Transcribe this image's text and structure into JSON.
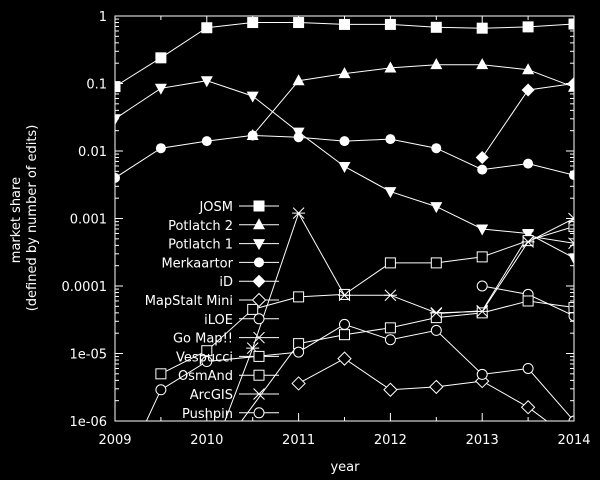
{
  "chart_data": {
    "type": "line",
    "xlabel": "year",
    "ylabel_lines": [
      "market share",
      "(defined by number of edits)"
    ],
    "xlim": [
      2009,
      2014
    ],
    "ylim": [
      1e-06,
      1
    ],
    "log_y": true,
    "grid": false,
    "legend_position": "left",
    "x_ticks": [
      2009,
      2010,
      2011,
      2012,
      2013,
      2014
    ],
    "x_tick_labels": [
      "2009",
      "2010",
      "2011",
      "2012",
      "2013",
      "2014"
    ],
    "y_ticks": [
      1e-06,
      1e-05,
      0.0001,
      0.001,
      0.01,
      0.1,
      1
    ],
    "y_tick_labels": [
      "1e-06",
      "1e-05",
      "0.0001",
      "0.001",
      "0.01",
      "0.1",
      "1"
    ],
    "series": [
      {
        "name": "JOSM",
        "marker": "filled-square",
        "points": [
          [
            2009,
            0.09
          ],
          [
            2009.5,
            0.24
          ],
          [
            2010,
            0.67
          ],
          [
            2010.5,
            0.8
          ],
          [
            2011,
            0.8
          ],
          [
            2011.5,
            0.75
          ],
          [
            2012,
            0.75
          ],
          [
            2012.5,
            0.68
          ],
          [
            2013,
            0.66
          ],
          [
            2013.5,
            0.69
          ],
          [
            2014,
            0.76
          ]
        ]
      },
      {
        "name": "Potlatch 2",
        "marker": "filled-triangle-up",
        "points": [
          [
            2010.5,
            0.017
          ],
          [
            2011,
            0.11
          ],
          [
            2011.5,
            0.14
          ],
          [
            2012,
            0.17
          ],
          [
            2012.5,
            0.19
          ],
          [
            2013,
            0.19
          ],
          [
            2013.5,
            0.16
          ],
          [
            2014,
            0.088
          ]
        ]
      },
      {
        "name": "Potlatch 1",
        "marker": "filled-triangle-down",
        "points": [
          [
            2009,
            0.03
          ],
          [
            2009.5,
            0.085
          ],
          [
            2010,
            0.11
          ],
          [
            2010.5,
            0.065
          ],
          [
            2011,
            0.019
          ],
          [
            2011.5,
            0.0059
          ],
          [
            2012,
            0.0025
          ],
          [
            2012.5,
            0.0015
          ],
          [
            2013,
            0.0007
          ],
          [
            2013.5,
            0.0006
          ],
          [
            2014,
            0.00026
          ]
        ]
      },
      {
        "name": "Merkaartor",
        "marker": "filled-circle",
        "points": [
          [
            2009,
            0.004
          ],
          [
            2009.5,
            0.011
          ],
          [
            2010,
            0.014
          ],
          [
            2010.5,
            0.017
          ],
          [
            2011,
            0.016
          ],
          [
            2011.5,
            0.014
          ],
          [
            2012,
            0.015
          ],
          [
            2012.5,
            0.011
          ],
          [
            2013,
            0.0053
          ],
          [
            2013.5,
            0.0065
          ],
          [
            2014,
            0.0044
          ]
        ]
      },
      {
        "name": "iD",
        "marker": "filled-diamond",
        "points": [
          [
            2013,
            0.008
          ],
          [
            2013.5,
            0.08
          ],
          [
            2014,
            0.1
          ]
        ]
      },
      {
        "name": "MapStalt Mini",
        "marker": "open-diamond",
        "points": [
          [
            2011,
            3.6e-06
          ],
          [
            2011.5,
            8.4e-06
          ],
          [
            2012,
            2.9e-06
          ],
          [
            2012.5,
            3.2e-06
          ],
          [
            2013,
            3.9e-06
          ],
          [
            2013.5,
            1.6e-06
          ],
          [
            2014,
            5e-07
          ]
        ]
      },
      {
        "name": "iLOE",
        "marker": "open-circle",
        "points": [
          [
            2013,
            0.0001
          ],
          [
            2013.5,
            7.5e-05
          ],
          [
            2014,
            3.6e-05
          ]
        ]
      },
      {
        "name": "Go Map!!",
        "marker": "x-cross",
        "points": [
          [
            2012.5,
            3.9e-05
          ],
          [
            2013,
            4.3e-05
          ],
          [
            2013.5,
            0.00055
          ],
          [
            2014,
            0.00043
          ]
        ]
      },
      {
        "name": "Vespucci",
        "marker": "open-square",
        "points": [
          [
            2009.5,
            5e-06
          ],
          [
            2010,
            1.1e-05
          ],
          [
            2010.5,
            4.5e-05
          ],
          [
            2011,
            6.9e-05
          ],
          [
            2011.5,
            7.5e-05
          ],
          [
            2012,
            0.00022
          ],
          [
            2012.5,
            0.00022
          ],
          [
            2013,
            0.00027
          ],
          [
            2013.5,
            0.00047
          ],
          [
            2014,
            0.00076
          ]
        ]
      },
      {
        "name": "OsmAnd",
        "marker": "open-square",
        "points": [
          [
            2010,
            2e-07
          ],
          [
            2011,
            1.4e-05
          ],
          [
            2011.5,
            1.9e-05
          ],
          [
            2012,
            2.4e-05
          ],
          [
            2012.5,
            3.4e-05
          ],
          [
            2013,
            4e-05
          ],
          [
            2013.5,
            6e-05
          ],
          [
            2014,
            4.8e-05
          ]
        ]
      },
      {
        "name": "ArcGIS",
        "marker": "asterisk",
        "points": [
          [
            2010,
            2e-07
          ],
          [
            2010.5,
            1.2e-05
          ],
          [
            2011,
            0.0012
          ],
          [
            2011.5,
            7.3e-05
          ],
          [
            2012,
            7.3e-05
          ],
          [
            2012.5,
            4e-05
          ],
          [
            2013,
            4.2e-05
          ],
          [
            2013.5,
            0.00045
          ],
          [
            2014,
            0.001
          ]
        ]
      },
      {
        "name": "Pushpin",
        "marker": "open-circle",
        "points": [
          [
            2009,
            1e-07
          ],
          [
            2009.5,
            2.9e-06
          ],
          [
            2010,
            7.6e-06
          ],
          [
            2011,
            1.05e-05
          ],
          [
            2011.5,
            2.7e-05
          ],
          [
            2012,
            1.6e-05
          ],
          [
            2012.5,
            2.2e-05
          ],
          [
            2013,
            4.9e-06
          ],
          [
            2013.5,
            6e-06
          ],
          [
            2014,
            1e-06
          ]
        ]
      }
    ]
  }
}
